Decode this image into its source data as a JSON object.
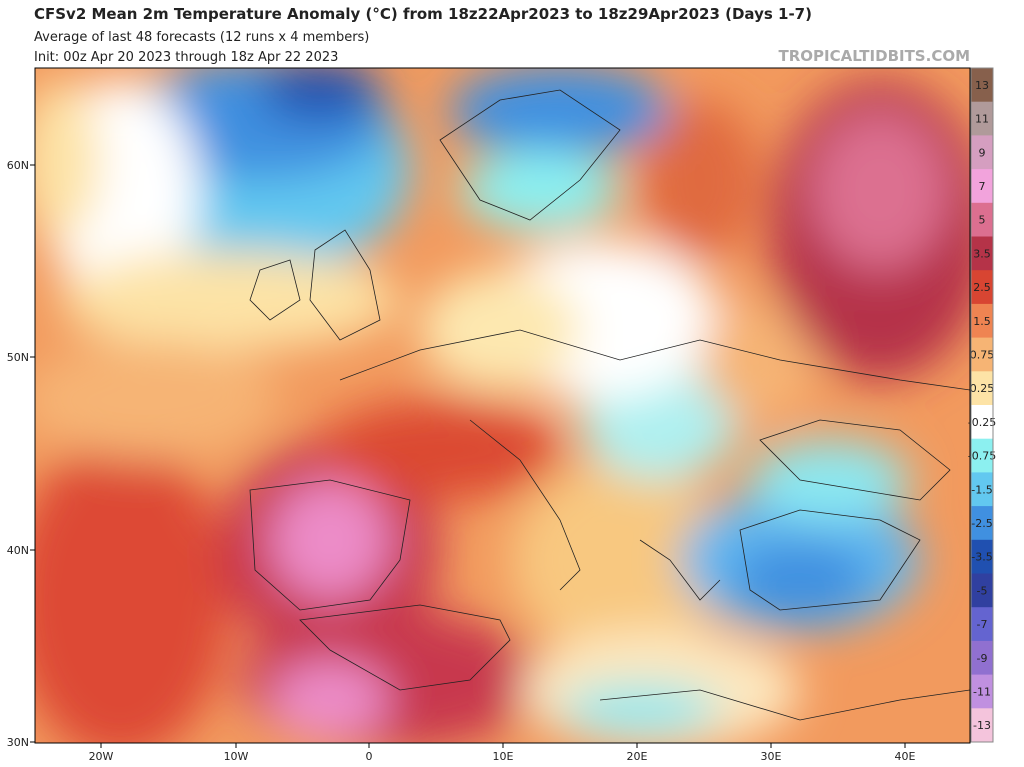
{
  "header": {
    "title": "CFSv2 Mean 2m Temperature Anomaly (°C) from 18z22Apr2023 to 18z29Apr2023 (Days 1-7)",
    "subtitle": "Average of last 48 forecasts (12 runs x 4 members)",
    "init": "Init: 00z Apr 20 2023 through 18z Apr 22 2023",
    "watermark": "TROPICALTIDBITS.COM"
  },
  "axes": {
    "lat_labels": [
      "60N",
      "50N",
      "40N",
      "30N"
    ],
    "lon_labels": [
      "20W",
      "10W",
      "0",
      "10E",
      "20E",
      "30E",
      "40E"
    ]
  },
  "colorbar": {
    "labels": [
      "13",
      "11",
      "9",
      "7",
      "5",
      "3.5",
      "2.5",
      "1.5",
      "0.75",
      "0.25",
      "-0.25",
      "-0.75",
      "-1.5",
      "-2.5",
      "-3.5",
      "-5",
      "-7",
      "-9",
      "-11",
      "-13"
    ],
    "colors": [
      "#87604c",
      "#b09a9a",
      "#d59ec0",
      "#f2a3dc",
      "#dc6f90",
      "#b53348",
      "#d84532",
      "#ef8452",
      "#f6b474",
      "#fde3a6",
      "#ffffff",
      "#8cf0f0",
      "#62c8f0",
      "#4090e0",
      "#2050b0",
      "#3040a0",
      "#6464d0",
      "#9070d0",
      "#c090e0",
      "#f4c4dc"
    ]
  }
}
